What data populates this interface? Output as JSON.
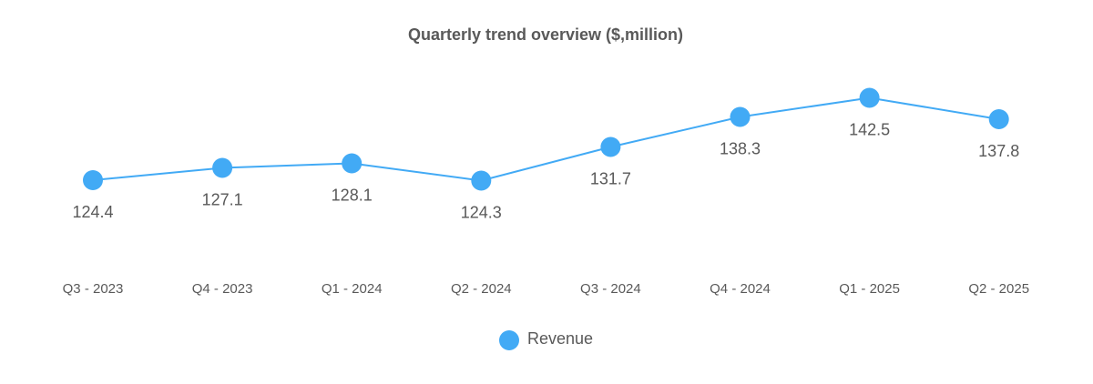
{
  "chart_data": {
    "type": "line",
    "title": "Quarterly trend overview ($,million)",
    "categories": [
      "Q3 - 2023",
      "Q4 - 2023",
      "Q1 - 2024",
      "Q2 - 2024",
      "Q3 - 2024",
      "Q4 - 2024",
      "Q1 - 2025",
      "Q2 - 2025"
    ],
    "series": [
      {
        "name": "Revenue",
        "color": "#42AAF5",
        "values": [
          124.4,
          127.1,
          128.1,
          124.3,
          131.7,
          138.3,
          142.5,
          137.8
        ],
        "labels": [
          "124.4",
          "127.1",
          "128.1",
          "124.3",
          "131.7",
          "138.3",
          "142.5",
          "137.8"
        ]
      }
    ],
    "xlabel": "",
    "ylabel": "",
    "ylim": [
      104,
      148
    ],
    "grid": false,
    "legend": "bottom",
    "data_label_position": "below"
  }
}
